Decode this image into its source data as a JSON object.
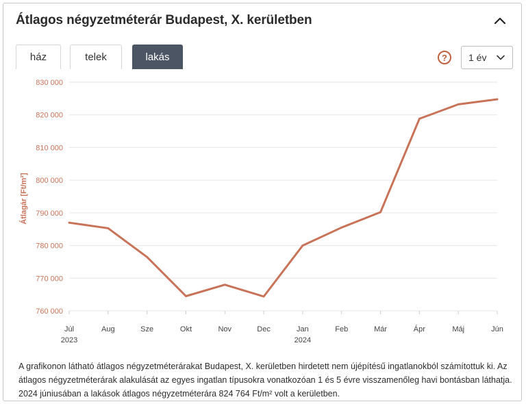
{
  "panel": {
    "title": "Átlagos négyzetméterár Budapest, X. kerületben"
  },
  "tabs": [
    {
      "label": "ház"
    },
    {
      "label": "telek"
    },
    {
      "label": "lakás",
      "active": true
    }
  ],
  "help": {
    "glyph": "?",
    "icon": "question-circle-icon"
  },
  "period_select": {
    "value": "1 év"
  },
  "colors": {
    "line": "#c87358",
    "axis_text": "#c87358",
    "tick_text": "#444444",
    "active_tab": "#4b5563"
  },
  "chart_data": {
    "type": "line",
    "ylabel": "Átlagár [Ft/m²]",
    "ylim": [
      760000,
      830000
    ],
    "y_ticks": [
      760000,
      770000,
      780000,
      790000,
      800000,
      810000,
      820000,
      830000
    ],
    "y_tick_labels": [
      "760 000",
      "770 000",
      "780 000",
      "790 000",
      "800 000",
      "810 000",
      "820 000",
      "830 000"
    ],
    "categories": [
      "Júl",
      "Aug",
      "Sze",
      "Okt",
      "Nov",
      "Dec",
      "Jan",
      "Feb",
      "Már",
      "Ápr",
      "Máj",
      "Jún"
    ],
    "year_labels": [
      {
        "index": 0,
        "label": "2023"
      },
      {
        "index": 6,
        "label": "2024"
      }
    ],
    "series": [
      {
        "values": [
          787000,
          785300,
          776500,
          764500,
          768000,
          764400,
          780000,
          785500,
          790200,
          818800,
          823200,
          824764
        ]
      }
    ],
    "grid": true
  },
  "description": "A grafikonon látható átlagos négyzetméterárakat Budapest, X. kerületben hirdetett nem újépítésű ingatlanokból számítottuk ki. Az átlagos négyzetméterárak alakulását az egyes ingatlan típusokra vonatkozóan 1 és 5 évre visszamenőleg havi bontásban láthatja. 2024 júniusában a lakások átlagos négyzetméterára 824 764 Ft/m² volt a kerületben."
}
